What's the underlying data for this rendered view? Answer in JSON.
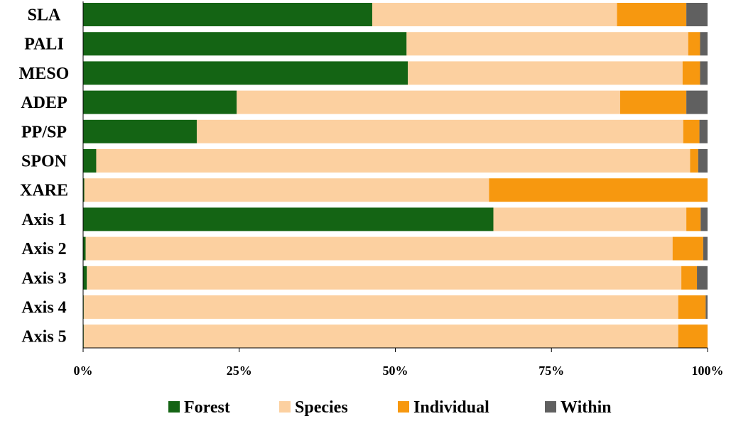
{
  "chart_data": {
    "type": "bar",
    "orientation": "horizontal",
    "stacked": "percent",
    "categories": [
      "SLA",
      "PALI",
      "MESO",
      "ADEP",
      "PP/SP",
      "SPON",
      "XARE",
      "Axis 1",
      "Axis 2",
      "Axis 3",
      "Axis 4",
      "Axis 5"
    ],
    "series": [
      {
        "name": "Forest",
        "color": "#146414",
        "values": [
          46.3,
          51.8,
          52.0,
          24.6,
          18.2,
          2.1,
          0.2,
          65.7,
          0.4,
          0.6,
          0.1,
          0.1
        ]
      },
      {
        "name": "Species",
        "color": "#FCD0A0",
        "values": [
          39.2,
          45.1,
          44.0,
          61.4,
          77.9,
          95.1,
          64.8,
          30.9,
          94.0,
          95.2,
          95.2,
          95.2
        ]
      },
      {
        "name": "Individual",
        "color": "#F7980F",
        "values": [
          11.1,
          1.9,
          2.8,
          10.6,
          2.6,
          1.3,
          35.0,
          2.3,
          4.9,
          2.5,
          4.4,
          4.7
        ]
      },
      {
        "name": "Within",
        "color": "#606060",
        "values": [
          3.4,
          1.2,
          1.2,
          3.4,
          1.3,
          1.5,
          0.0,
          1.1,
          0.7,
          1.7,
          0.3,
          0.0
        ]
      }
    ],
    "xlim": [
      0,
      100
    ],
    "xticks": [
      "0%",
      "25%",
      "50%",
      "75%",
      "100%"
    ],
    "title": "",
    "xlabel": "",
    "ylabel": "",
    "grid": false,
    "legend": {
      "placement": "bottom"
    }
  }
}
